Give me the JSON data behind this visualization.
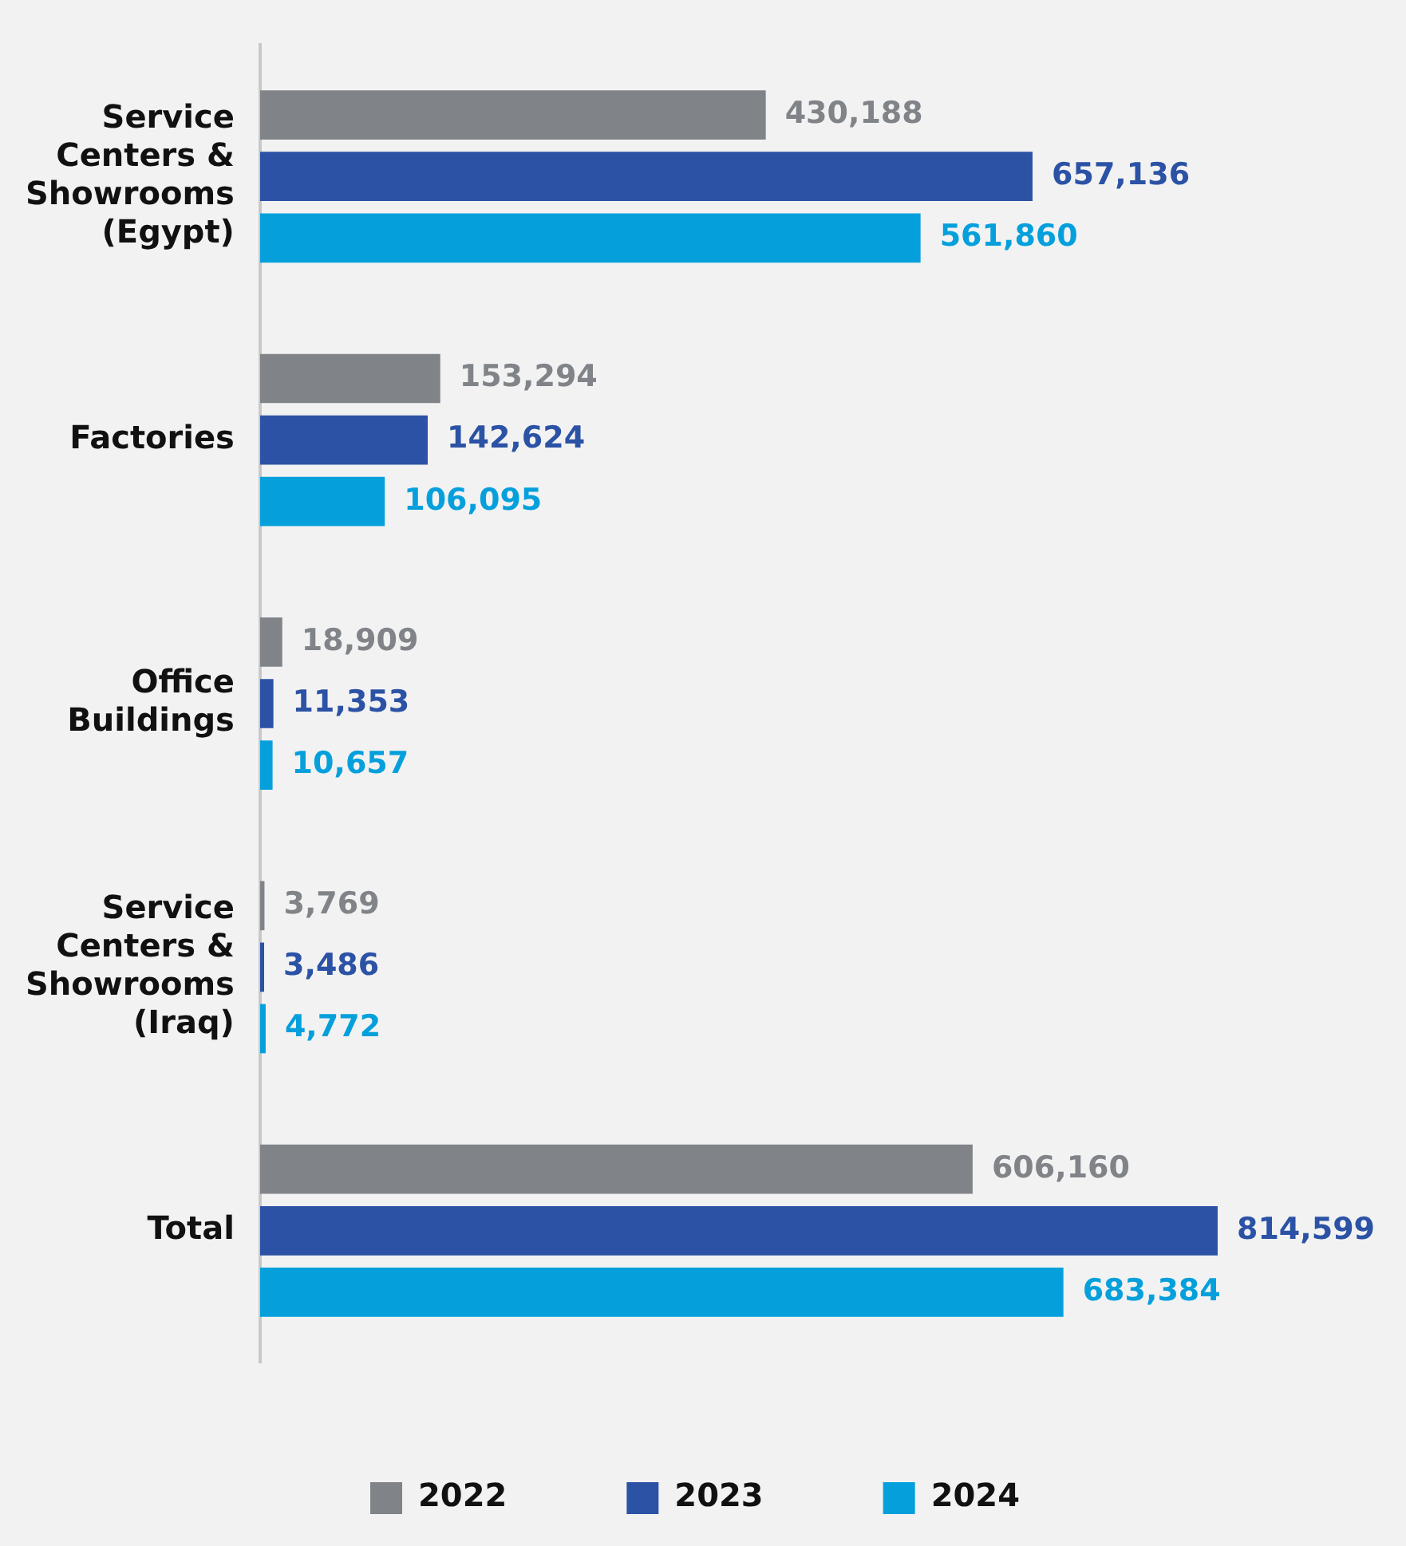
{
  "chart_data": {
    "type": "bar",
    "orientation": "horizontal",
    "categories": [
      "Service Centers & Showrooms (Egypt)",
      "Factories",
      "Office Buildings",
      "Service Centers & Showrooms (Iraq)",
      "Total"
    ],
    "series": [
      {
        "name": "2022",
        "color": "#808488",
        "values": [
          430188,
          153294,
          18909,
          3769,
          606160
        ],
        "value_labels": [
          "430,188",
          "153,294",
          "18,909",
          "3,769",
          "606,160"
        ]
      },
      {
        "name": "2023",
        "color": "#2b52a5",
        "values": [
          657136,
          142624,
          11353,
          3486,
          814599
        ],
        "value_labels": [
          "657,136",
          "142,624",
          "11,353",
          "3,486",
          "814,599"
        ]
      },
      {
        "name": "2024",
        "color": "#05a0dc",
        "values": [
          561860,
          106095,
          10657,
          4772,
          683384
        ],
        "value_labels": [
          "561,860",
          "106,095",
          "10,657",
          "4,772",
          "683,384"
        ]
      }
    ],
    "legend": "bottom"
  }
}
